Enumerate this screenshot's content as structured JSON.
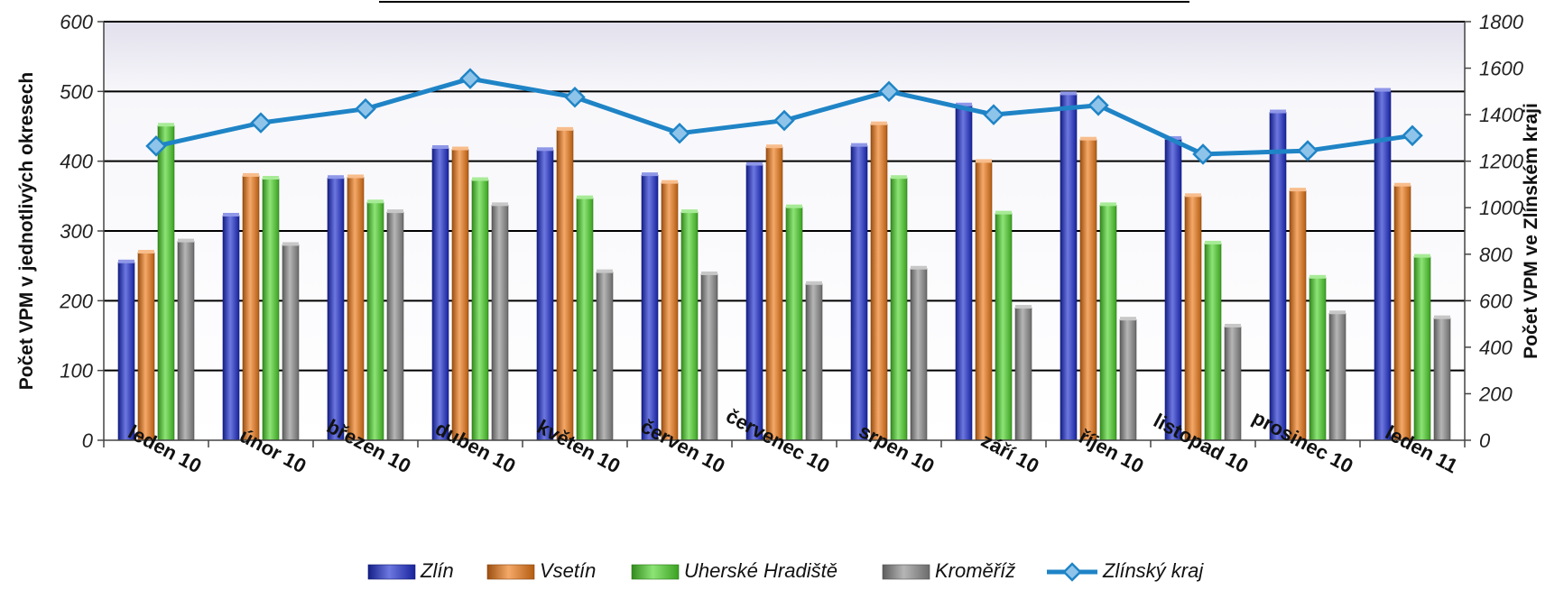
{
  "chart_data": {
    "type": "bar",
    "title": "",
    "categories": [
      "leden 10",
      "únor 10",
      "březen 10",
      "duben 10",
      "květen 10",
      "červen 10",
      "červenec 10",
      "srpen 10",
      "září 10",
      "říjen 10",
      "listopad 10",
      "prosinec 10",
      "leden 11"
    ],
    "ylabel": "Počet VPM v jednotlivých okresech",
    "y2label": "Počet VPM ve Zlínském kraji",
    "ylim": [
      0,
      600
    ],
    "y2lim": [
      0,
      1800
    ],
    "yticks": [
      "0",
      "100",
      "200",
      "300",
      "400",
      "500",
      "600"
    ],
    "y2ticks": [
      "0",
      "200",
      "400",
      "600",
      "800",
      "1000",
      "1200",
      "1400",
      "1600",
      "1800"
    ],
    "grid": true,
    "legend_position": "bottom",
    "series": [
      {
        "name": "Zlín",
        "type": "bar",
        "axis": "left",
        "color": "#1f2fd0",
        "values": [
          255,
          322,
          376,
          419,
          416,
          380,
          395,
          422,
          480,
          496,
          432,
          470,
          501
        ]
      },
      {
        "name": "Vsetín",
        "type": "bar",
        "axis": "left",
        "color": "#f07a18",
        "values": [
          269,
          379,
          377,
          417,
          445,
          369,
          420,
          453,
          399,
          431,
          350,
          358,
          365
        ]
      },
      {
        "name": "Uherské Hradiště",
        "type": "bar",
        "axis": "left",
        "color": "#4fd62c",
        "values": [
          451,
          375,
          341,
          373,
          347,
          327,
          334,
          376,
          325,
          337,
          282,
          233,
          263
        ]
      },
      {
        "name": "Kroměříž",
        "type": "bar",
        "axis": "left",
        "color": "#8e8e8e",
        "values": [
          285,
          280,
          327,
          337,
          241,
          238,
          224,
          246,
          190,
          173,
          163,
          182,
          175
        ]
      },
      {
        "name": "Zlínský kraj",
        "type": "line",
        "axis": "right",
        "color": "#1f84c6",
        "values": [
          1265,
          1365,
          1425,
          1555,
          1475,
          1320,
          1375,
          1500,
          1400,
          1440,
          1230,
          1245,
          1310
        ]
      }
    ]
  }
}
